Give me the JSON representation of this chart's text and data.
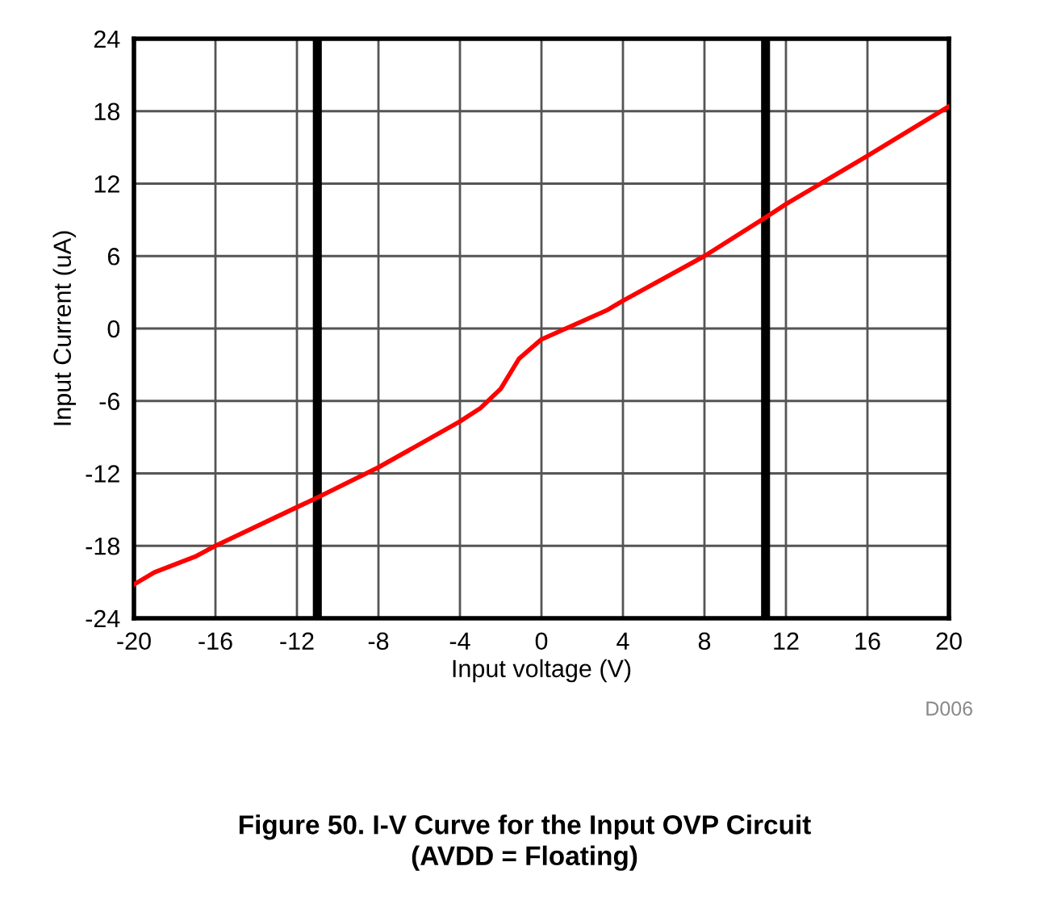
{
  "chart_data": {
    "type": "line",
    "title": "Figure 50. I-V Curve for the Input OVP Circuit\n(AVDD = Floating)",
    "xlabel": "Input voltage (V)",
    "ylabel": "Input Current (uA)",
    "annotations": [
      "D006"
    ],
    "x": [
      -20,
      -19,
      -17,
      -16,
      -12,
      -11,
      -8,
      -4,
      -3,
      -2,
      -1.1,
      0,
      3.2,
      4,
      8,
      11,
      12,
      16,
      20
    ],
    "series": [
      {
        "color": "#ff0000",
        "values": [
          -21.2,
          -20.2,
          -18.9,
          -18.0,
          -14.8,
          -14.0,
          -11.5,
          -7.7,
          -6.6,
          -5.0,
          -2.5,
          -0.9,
          1.5,
          2.3,
          6.0,
          9.2,
          10.3,
          14.3,
          18.4
        ]
      }
    ],
    "xlim": [
      -20,
      20
    ],
    "xticks": [
      -20,
      -16,
      -12,
      -8,
      -4,
      0,
      4,
      8,
      12,
      16,
      20
    ],
    "ylim": [
      -24,
      24
    ],
    "yticks": [
      -24,
      -18,
      -12,
      -6,
      0,
      6,
      12,
      18,
      24
    ],
    "ref_lines": [
      {
        "axis": "x",
        "value": -11,
        "color": "#000000"
      },
      {
        "axis": "x",
        "value": 11,
        "color": "#000000"
      }
    ],
    "grid": true,
    "legend": false,
    "marker": "none",
    "line_style": "solid"
  }
}
